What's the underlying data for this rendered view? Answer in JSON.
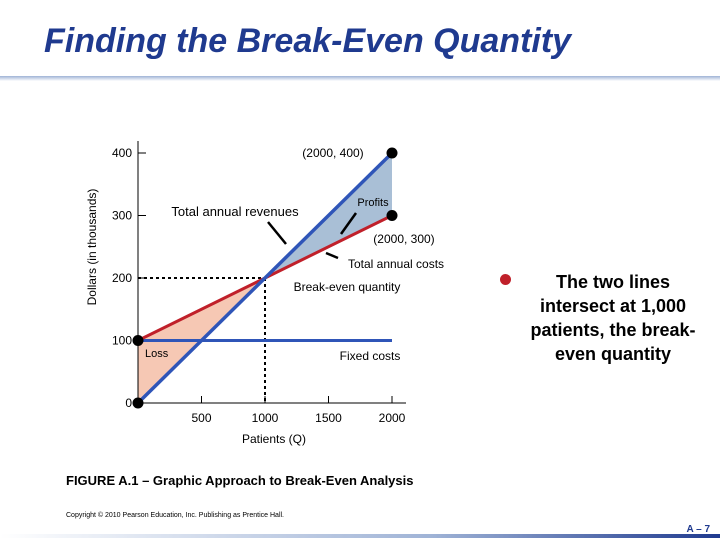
{
  "slide": {
    "title": "Finding the Break-Even Quantity",
    "bullet": "The two lines intersect at 1,000 patients, the break-even quantity",
    "caption": "FIGURE A.1 – Graphic Approach to Break-Even Analysis",
    "copyright": "Copyright © 2010 Pearson Education, Inc. Publishing as Prentice Hall.",
    "page_number": "A – 7"
  },
  "colors": {
    "title": "#1f3a8f",
    "revenue_line": "#2f55b8",
    "cost_line": "#c0202a",
    "profit_area": "#a9bfd6",
    "loss_area": "#f6c8b4",
    "bullet": "#c0202a"
  },
  "chart_data": {
    "type": "line",
    "xlabel": "Patients (Q)",
    "ylabel": "Dollars (in thousands)",
    "xlim": [
      0,
      2000
    ],
    "ylim": [
      0,
      400
    ],
    "x_ticks": [
      500,
      1000,
      1500,
      2000
    ],
    "x_tick_labels": [
      "500",
      "1000",
      "1500",
      "2000"
    ],
    "y_ticks": [
      0,
      100,
      200,
      300,
      400
    ],
    "y_tick_labels": [
      "0",
      "100",
      "200",
      "300",
      "400"
    ],
    "series": [
      {
        "name": "Total annual revenues",
        "x": [
          0,
          2000
        ],
        "y": [
          0,
          400
        ],
        "color": "#2f55b8"
      },
      {
        "name": "Total annual costs",
        "x": [
          0,
          2000
        ],
        "y": [
          100,
          300
        ],
        "color": "#c0202a"
      },
      {
        "name": "Fixed costs",
        "x": [
          0,
          2000
        ],
        "y": [
          100,
          100
        ],
        "color": "#2f55b8"
      }
    ],
    "break_even": {
      "x": 1000,
      "y": 200,
      "label": "Break-even quantity"
    },
    "regions": [
      {
        "label": "Profits",
        "from_x": 1000,
        "to_x": 2000,
        "color": "#a9bfd6"
      },
      {
        "label": "Loss",
        "from_x": 0,
        "to_x": 1000,
        "color": "#f6c8b4"
      }
    ],
    "points": [
      {
        "x": 0,
        "y": 0
      },
      {
        "x": 0,
        "y": 100
      },
      {
        "x": 2000,
        "y": 400,
        "label": "(2000, 400)"
      },
      {
        "x": 2000,
        "y": 300,
        "label": "(2000, 300)"
      }
    ],
    "annotations": [
      {
        "text": "Total annual revenues",
        "x": 1000,
        "y": 200
      },
      {
        "text": "Total annual costs",
        "x": 1500,
        "y": 250
      },
      {
        "text": "Break-even quantity",
        "x": 1000,
        "y": 200
      },
      {
        "text": "Profits",
        "x": 1800,
        "y": 330
      },
      {
        "text": "Loss",
        "x": 200,
        "y": 100
      },
      {
        "text": "Fixed costs",
        "x": 1500,
        "y": 100
      }
    ]
  }
}
